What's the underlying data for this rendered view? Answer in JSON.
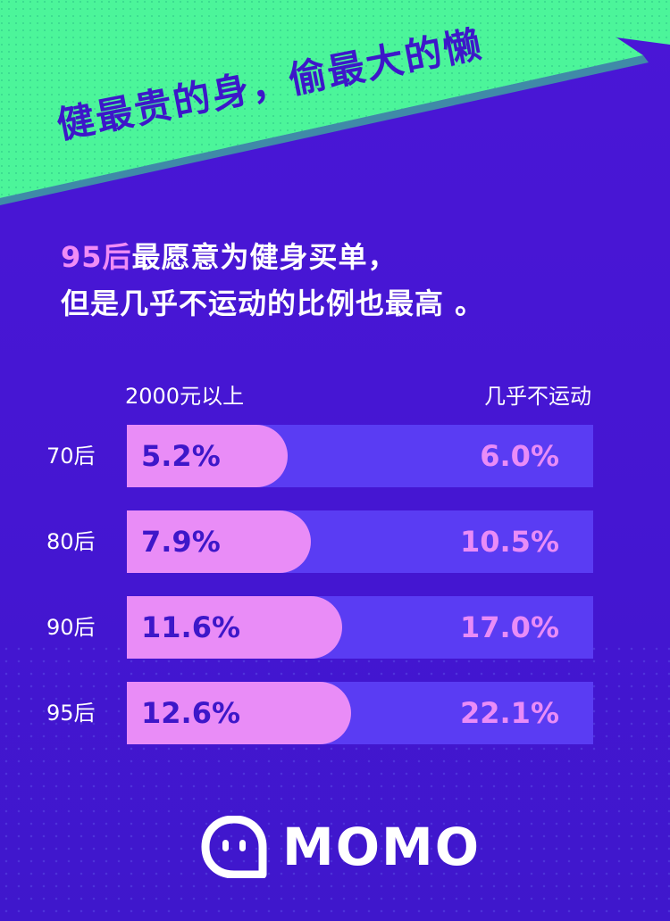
{
  "banner": {
    "title": "健最贵的身，偷最大的懒"
  },
  "headline": {
    "highlight": "95后",
    "line1_rest": "最愿意为健身买单，",
    "line2": "但是几乎不运动的比例也最高 。"
  },
  "colors": {
    "accent_pink": "#e98cf7",
    "bg_purple": "#4516d2",
    "banner_green": "#4cf59a",
    "track": "#5a3cf3"
  },
  "chart_data": {
    "type": "bar",
    "categories": [
      "70后",
      "80后",
      "90后",
      "95后"
    ],
    "series": [
      {
        "name": "2000元以上",
        "values": [
          5.2,
          7.9,
          11.6,
          12.6
        ],
        "labels": [
          "5.2%",
          "7.9%",
          "11.6%",
          "12.6%"
        ]
      },
      {
        "name": "几乎不运动",
        "values": [
          6.0,
          10.5,
          17.0,
          22.1
        ],
        "labels": [
          "6.0%",
          "10.5%",
          "17.0%",
          "22.1%"
        ]
      }
    ],
    "legend": [
      "2000元以上",
      "几乎不运动"
    ]
  },
  "logo": {
    "text": "MOMO",
    "icon": "momo-face-icon"
  }
}
